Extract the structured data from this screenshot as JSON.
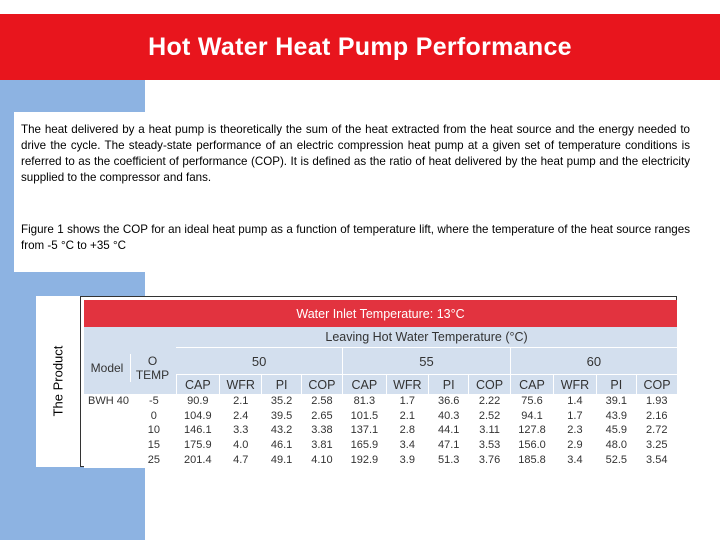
{
  "slide": {
    "title": "Hot Water Heat Pump Performance",
    "paragraph1": "The heat delivered by a heat pump is theoretically the sum of the heat extracted from the heat source and the energy needed to drive the cycle. The steady-state performance of an electric compression heat pump at a given set of temperature conditions is referred to as the coefficient of performance (COP). It is defined as the ratio of heat delivered by the heat pump and the electricity supplied to the compressor and fans.",
    "paragraph2": "Figure 1 shows the COP for an ideal heat pump as a function of temperature lift, where the temperature of the heat source ranges from -5 °C to +35 °C",
    "side_label": "The Product"
  },
  "colors": {
    "title_bar": "#e8151d",
    "side_strip": "#8db3e2",
    "table_header_red": "#e2333f",
    "table_header_blue": "#d3dfee"
  },
  "table": {
    "inlet_header": "Water Inlet Temperature: 13°C",
    "leaving_header": "Leaving Hot Water Temperature (°C)",
    "col_model": "Model",
    "col_otemp": "O TEMP",
    "groups": [
      "50",
      "55",
      "60"
    ],
    "sub_cols": [
      "CAP",
      "WFR",
      "PI",
      "COP",
      "CAP",
      "WFR",
      "PI",
      "COP",
      "CAP",
      "WFR",
      "PI",
      "COP"
    ],
    "model_name": "BWH 40",
    "rows": [
      {
        "otemp": "-5",
        "values": [
          "90.9",
          "2.1",
          "35.2",
          "2.58",
          "81.3",
          "1.7",
          "36.6",
          "2.22",
          "75.6",
          "1.4",
          "39.1",
          "1.93"
        ]
      },
      {
        "otemp": "0",
        "values": [
          "104.9",
          "2.4",
          "39.5",
          "2.65",
          "101.5",
          "2.1",
          "40.3",
          "2.52",
          "94.1",
          "1.7",
          "43.9",
          "2.16"
        ]
      },
      {
        "otemp": "10",
        "values": [
          "146.1",
          "3.3",
          "43.2",
          "3.38",
          "137.1",
          "2.8",
          "44.1",
          "3.11",
          "127.8",
          "2.3",
          "45.9",
          "2.72"
        ]
      },
      {
        "otemp": "15",
        "values": [
          "175.9",
          "4.0",
          "46.1",
          "3.81",
          "165.9",
          "3.4",
          "47.1",
          "3.53",
          "156.0",
          "2.9",
          "48.0",
          "3.25"
        ]
      },
      {
        "otemp": "25",
        "values": [
          "201.4",
          "4.7",
          "49.1",
          "4.10",
          "192.9",
          "3.9",
          "51.3",
          "3.76",
          "185.8",
          "3.4",
          "52.5",
          "3.54"
        ]
      }
    ]
  }
}
